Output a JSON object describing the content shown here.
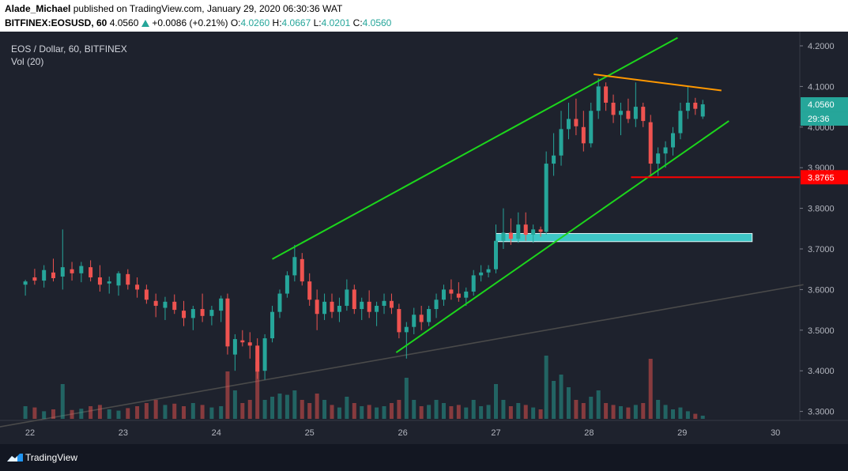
{
  "header": {
    "author": "Alade_Michael",
    "published_text": "published on TradingView.com, January 29, 2020 06:30:36 WAT",
    "symbol": "BITFINEX:EOSUSD, 60",
    "last_price": "4.0560",
    "change": "+0.0086 (+0.21%)",
    "o_label": "O:",
    "o_value": "4.0260",
    "h_label": "H:",
    "h_value": "4.0667",
    "l_label": "L:",
    "l_value": "4.0201",
    "c_label": "C:",
    "c_value": "4.0560"
  },
  "legend": {
    "title": "EOS / Dollar, 60, BITFINEX",
    "volume": "Vol (20)"
  },
  "footer": {
    "brand": "TradingView"
  },
  "colors": {
    "background": "#1e222d",
    "up": "#26a69a",
    "down": "#ef5350",
    "channel": "#1cd61c",
    "resistance": "#ff9800",
    "support_line": "#ff0000",
    "zone": "#3ec6c6"
  },
  "chart_data": {
    "type": "candlestick",
    "x_ticks": [
      "22",
      "23",
      "24",
      "25",
      "26",
      "27",
      "28",
      "29",
      "30"
    ],
    "y_ticks": [
      "4.2000",
      "4.1000",
      "4.0000",
      "3.9000",
      "3.8000",
      "3.7000",
      "3.6000",
      "3.5000",
      "3.4000",
      "3.3000"
    ],
    "y_tick_values": [
      4.2,
      4.1,
      4.0,
      3.9,
      3.8,
      3.7,
      3.6,
      3.5,
      3.4,
      3.3
    ],
    "ylim": [
      3.28,
      4.22
    ],
    "price_label": "4.0560",
    "countdown": "29:36",
    "support_label": "3.8765",
    "candles": [
      [
        21.95,
        3.612,
        3.624,
        3.585,
        3.62
      ],
      [
        22.05,
        3.63,
        3.651,
        3.612,
        3.622
      ],
      [
        22.15,
        3.622,
        3.66,
        3.605,
        3.648
      ],
      [
        22.25,
        3.642,
        3.676,
        3.62,
        3.628
      ],
      [
        22.35,
        3.632,
        3.748,
        3.6,
        3.655
      ],
      [
        22.45,
        3.65,
        3.668,
        3.622,
        3.64
      ],
      [
        22.55,
        3.64,
        3.668,
        3.618,
        3.658
      ],
      [
        22.65,
        3.655,
        3.672,
        3.62,
        3.63
      ],
      [
        22.75,
        3.63,
        3.66,
        3.595,
        3.612
      ],
      [
        22.85,
        3.615,
        3.632,
        3.59,
        3.62
      ],
      [
        22.95,
        3.61,
        3.645,
        3.585,
        3.64
      ],
      [
        23.05,
        3.638,
        3.65,
        3.6,
        3.612
      ],
      [
        23.15,
        3.612,
        3.63,
        3.58,
        3.6
      ],
      [
        23.25,
        3.6,
        3.612,
        3.565,
        3.575
      ],
      [
        23.35,
        3.572,
        3.59,
        3.532,
        3.56
      ],
      [
        23.45,
        3.555,
        3.582,
        3.525,
        3.57
      ],
      [
        23.55,
        3.57,
        3.588,
        3.54,
        3.55
      ],
      [
        23.65,
        3.548,
        3.572,
        3.51,
        3.53
      ],
      [
        23.75,
        3.53,
        3.56,
        3.5,
        3.552
      ],
      [
        23.85,
        3.552,
        3.59,
        3.52,
        3.535
      ],
      [
        23.95,
        3.535,
        3.56,
        3.512,
        3.55
      ],
      [
        24.05,
        3.548,
        3.585,
        3.52,
        3.578
      ],
      [
        24.12,
        3.578,
        3.59,
        3.44,
        3.46
      ],
      [
        24.2,
        3.44,
        3.49,
        3.4,
        3.478
      ],
      [
        24.28,
        3.475,
        3.5,
        3.46,
        3.47
      ],
      [
        24.36,
        3.47,
        3.495,
        3.43,
        3.462
      ],
      [
        24.44,
        3.462,
        3.48,
        3.38,
        3.398
      ],
      [
        24.52,
        3.4,
        3.49,
        3.378,
        3.48
      ],
      [
        24.6,
        3.48,
        3.56,
        3.47,
        3.545
      ],
      [
        24.68,
        3.545,
        3.6,
        3.53,
        3.59
      ],
      [
        24.76,
        3.59,
        3.645,
        3.58,
        3.635
      ],
      [
        24.84,
        3.635,
        3.71,
        3.62,
        3.68
      ],
      [
        24.92,
        3.675,
        3.69,
        3.61,
        3.62
      ],
      [
        25.0,
        3.62,
        3.64,
        3.56,
        3.575
      ],
      [
        25.08,
        3.575,
        3.6,
        3.5,
        3.54
      ],
      [
        25.16,
        3.54,
        3.59,
        3.525,
        3.57
      ],
      [
        25.24,
        3.57,
        3.59,
        3.53,
        3.545
      ],
      [
        25.32,
        3.545,
        3.58,
        3.52,
        3.56
      ],
      [
        25.4,
        3.56,
        3.625,
        3.548,
        3.6
      ],
      [
        25.48,
        3.6,
        3.612,
        3.54,
        3.552
      ],
      [
        25.56,
        3.552,
        3.58,
        3.525,
        3.57
      ],
      [
        25.64,
        3.57,
        3.598,
        3.53,
        3.545
      ],
      [
        25.72,
        3.545,
        3.57,
        3.51,
        3.56
      ],
      [
        25.8,
        3.56,
        3.59,
        3.54,
        3.572
      ],
      [
        25.88,
        3.572,
        3.59,
        3.54,
        3.555
      ],
      [
        25.96,
        3.552,
        3.565,
        3.48,
        3.495
      ],
      [
        26.04,
        3.495,
        3.52,
        3.43,
        3.508
      ],
      [
        26.12,
        3.508,
        3.555,
        3.49,
        3.538
      ],
      [
        26.2,
        3.538,
        3.56,
        3.5,
        3.52
      ],
      [
        26.28,
        3.52,
        3.56,
        3.51,
        3.552
      ],
      [
        26.36,
        3.552,
        3.59,
        3.53,
        3.575
      ],
      [
        26.44,
        3.575,
        3.612,
        3.56,
        3.6
      ],
      [
        26.52,
        3.6,
        3.625,
        3.575,
        3.59
      ],
      [
        26.6,
        3.59,
        3.618,
        3.57,
        3.58
      ],
      [
        26.68,
        3.58,
        3.605,
        3.56,
        3.595
      ],
      [
        26.76,
        3.595,
        3.648,
        3.585,
        3.635
      ],
      [
        26.84,
        3.635,
        3.66,
        3.62,
        3.642
      ],
      [
        26.92,
        3.642,
        3.66,
        3.63,
        3.65
      ],
      [
        27.0,
        3.65,
        3.76,
        3.64,
        3.72
      ],
      [
        27.08,
        3.72,
        3.8,
        3.7,
        3.74
      ],
      [
        27.16,
        3.74,
        3.775,
        3.71,
        3.725
      ],
      [
        27.24,
        3.725,
        3.79,
        3.715,
        3.76
      ],
      [
        27.32,
        3.76,
        3.79,
        3.72,
        3.735
      ],
      [
        27.4,
        3.735,
        3.76,
        3.715,
        3.748
      ],
      [
        27.48,
        3.748,
        3.755,
        3.73,
        3.742
      ],
      [
        27.54,
        3.742,
        3.94,
        3.735,
        3.91
      ],
      [
        27.62,
        3.91,
        3.985,
        3.88,
        3.93
      ],
      [
        27.7,
        3.93,
        4.04,
        3.905,
        3.995
      ],
      [
        27.78,
        3.995,
        4.06,
        3.97,
        4.02
      ],
      [
        27.86,
        4.02,
        4.07,
        3.98,
        4.002
      ],
      [
        27.94,
        4.0,
        4.04,
        3.94,
        3.96
      ],
      [
        28.02,
        3.96,
        4.06,
        3.95,
        4.04
      ],
      [
        28.1,
        4.04,
        4.12,
        4.02,
        4.1
      ],
      [
        28.18,
        4.1,
        4.11,
        4.04,
        4.06
      ],
      [
        28.26,
        4.06,
        4.08,
        4.01,
        4.03
      ],
      [
        28.34,
        4.03,
        4.06,
        3.98,
        4.04
      ],
      [
        28.42,
        4.04,
        4.07,
        4.01,
        4.02
      ],
      [
        28.5,
        4.02,
        4.11,
        4.0,
        4.05
      ],
      [
        28.58,
        4.05,
        4.06,
        4.0,
        4.015
      ],
      [
        28.66,
        4.012,
        4.03,
        3.88,
        3.91
      ],
      [
        28.74,
        3.91,
        3.95,
        3.88,
        3.935
      ],
      [
        28.82,
        3.935,
        3.965,
        3.9,
        3.95
      ],
      [
        28.9,
        3.95,
        4.0,
        3.93,
        3.985
      ],
      [
        28.98,
        3.985,
        4.06,
        3.97,
        4.04
      ],
      [
        29.06,
        4.04,
        4.1,
        4.02,
        4.06
      ],
      [
        29.14,
        4.06,
        4.072,
        4.03,
        4.045
      ],
      [
        29.22,
        4.026,
        4.067,
        4.02,
        4.056
      ]
    ],
    "volume": [
      [
        21.95,
        0.2
      ],
      [
        22.05,
        0.18
      ],
      [
        22.15,
        0.12
      ],
      [
        22.25,
        0.15
      ],
      [
        22.35,
        0.55
      ],
      [
        22.45,
        0.14
      ],
      [
        22.55,
        0.16
      ],
      [
        22.65,
        0.2
      ],
      [
        22.75,
        0.22
      ],
      [
        22.85,
        0.15
      ],
      [
        22.95,
        0.13
      ],
      [
        23.05,
        0.17
      ],
      [
        23.15,
        0.2
      ],
      [
        23.25,
        0.25
      ],
      [
        23.35,
        0.3
      ],
      [
        23.45,
        0.22
      ],
      [
        23.55,
        0.24
      ],
      [
        23.65,
        0.2
      ],
      [
        23.75,
        0.25
      ],
      [
        23.85,
        0.22
      ],
      [
        23.95,
        0.18
      ],
      [
        24.05,
        0.2
      ],
      [
        24.12,
        0.75
      ],
      [
        24.2,
        0.45
      ],
      [
        24.28,
        0.25
      ],
      [
        24.36,
        0.3
      ],
      [
        24.44,
        0.9
      ],
      [
        24.52,
        0.3
      ],
      [
        24.6,
        0.35
      ],
      [
        24.68,
        0.4
      ],
      [
        24.76,
        0.38
      ],
      [
        24.84,
        0.45
      ],
      [
        24.92,
        0.3
      ],
      [
        25.0,
        0.25
      ],
      [
        25.08,
        0.4
      ],
      [
        25.16,
        0.3
      ],
      [
        25.24,
        0.22
      ],
      [
        25.32,
        0.18
      ],
      [
        25.4,
        0.35
      ],
      [
        25.48,
        0.25
      ],
      [
        25.56,
        0.2
      ],
      [
        25.64,
        0.22
      ],
      [
        25.72,
        0.18
      ],
      [
        25.8,
        0.2
      ],
      [
        25.88,
        0.25
      ],
      [
        25.96,
        0.3
      ],
      [
        26.04,
        0.65
      ],
      [
        26.12,
        0.3
      ],
      [
        26.2,
        0.2
      ],
      [
        26.28,
        0.22
      ],
      [
        26.36,
        0.3
      ],
      [
        26.44,
        0.25
      ],
      [
        26.52,
        0.2
      ],
      [
        26.6,
        0.22
      ],
      [
        26.68,
        0.18
      ],
      [
        26.76,
        0.3
      ],
      [
        26.84,
        0.2
      ],
      [
        26.92,
        0.22
      ],
      [
        27.0,
        0.55
      ],
      [
        27.08,
        0.3
      ],
      [
        27.16,
        0.2
      ],
      [
        27.24,
        0.25
      ],
      [
        27.32,
        0.22
      ],
      [
        27.4,
        0.18
      ],
      [
        27.48,
        0.15
      ],
      [
        27.54,
        1.0
      ],
      [
        27.62,
        0.6
      ],
      [
        27.7,
        0.7
      ],
      [
        27.78,
        0.5
      ],
      [
        27.86,
        0.3
      ],
      [
        27.94,
        0.25
      ],
      [
        28.02,
        0.35
      ],
      [
        28.1,
        0.45
      ],
      [
        28.18,
        0.25
      ],
      [
        28.26,
        0.22
      ],
      [
        28.34,
        0.2
      ],
      [
        28.42,
        0.18
      ],
      [
        28.5,
        0.22
      ],
      [
        28.58,
        0.25
      ],
      [
        28.66,
        0.95
      ],
      [
        28.74,
        0.3
      ],
      [
        28.82,
        0.22
      ],
      [
        28.9,
        0.15
      ],
      [
        28.98,
        0.18
      ],
      [
        29.06,
        0.12
      ],
      [
        29.14,
        0.08
      ],
      [
        29.22,
        0.05
      ]
    ],
    "channel_upper": [
      [
        24.6,
        3.675
      ],
      [
        28.95,
        4.22
      ]
    ],
    "channel_lower": [
      [
        25.93,
        3.445
      ],
      [
        29.5,
        4.015
      ]
    ],
    "resistance_line": [
      [
        28.05,
        4.13
      ],
      [
        29.42,
        4.09
      ]
    ],
    "support_line": [
      [
        28.45,
        3.8765
      ],
      [
        30.3,
        3.8765
      ]
    ],
    "support_zone": {
      "x_start": 27.0,
      "x_end": 29.75,
      "y_low": 3.718,
      "y_high": 3.738
    },
    "ma_line": [
      [
        21.5,
        3.255
      ],
      [
        30.3,
        3.612
      ]
    ]
  }
}
